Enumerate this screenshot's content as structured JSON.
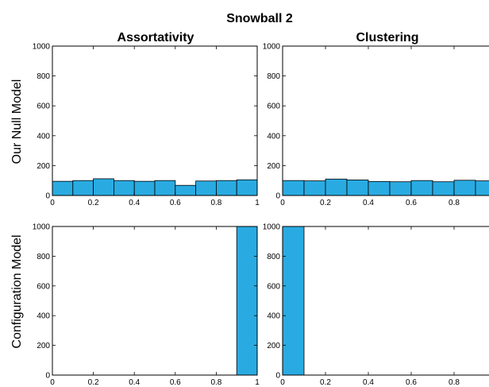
{
  "figure": {
    "title": "Snowball 2",
    "row_labels": [
      "Our Null Model",
      "Configuration Model"
    ],
    "bar_color": "#29abe2"
  },
  "chart_data": [
    {
      "type": "bar",
      "title": "Assortativity",
      "row": "Our Null Model",
      "bin_edges": [
        0,
        0.1,
        0.2,
        0.3,
        0.4,
        0.5,
        0.6,
        0.7,
        0.8,
        0.9,
        1.0
      ],
      "values": [
        95,
        100,
        112,
        100,
        95,
        100,
        68,
        97,
        100,
        105
      ],
      "xlim": [
        0,
        1
      ],
      "ylim": [
        0,
        1000
      ],
      "xticks": [
        "0",
        "0.2",
        "0.4",
        "0.6",
        "0.8",
        "1"
      ],
      "yticks": [
        "0",
        "200",
        "400",
        "600",
        "800",
        "1000"
      ]
    },
    {
      "type": "bar",
      "title": "Clustering",
      "row": "Our Null Model",
      "bin_edges": [
        0,
        0.1,
        0.2,
        0.3,
        0.4,
        0.5,
        0.6,
        0.7,
        0.8,
        0.9,
        1.0
      ],
      "values": [
        100,
        98,
        110,
        104,
        94,
        92,
        100,
        92,
        102,
        98
      ],
      "xlim": [
        0,
        1
      ],
      "ylim": [
        0,
        1000
      ],
      "xticks": [
        "0",
        "0.2",
        "0.4",
        "0.6",
        "0.8"
      ],
      "yticks": [
        "0",
        "200",
        "400",
        "600",
        "800",
        "1000"
      ]
    },
    {
      "type": "bar",
      "title": "",
      "row": "Configuration Model",
      "bin_edges": [
        0,
        0.1,
        0.2,
        0.3,
        0.4,
        0.5,
        0.6,
        0.7,
        0.8,
        0.9,
        1.0
      ],
      "values": [
        0,
        0,
        0,
        0,
        0,
        0,
        0,
        0,
        0,
        1000
      ],
      "xlim": [
        0,
        1
      ],
      "ylim": [
        0,
        1000
      ],
      "xticks": [
        "0",
        "0.2",
        "0.4",
        "0.6",
        "0.8",
        "1"
      ],
      "yticks": [
        "0",
        "200",
        "400",
        "600",
        "800",
        "1000"
      ]
    },
    {
      "type": "bar",
      "title": "",
      "row": "Configuration Model",
      "bin_edges": [
        0,
        0.1,
        0.2,
        0.3,
        0.4,
        0.5,
        0.6,
        0.7,
        0.8,
        0.9,
        1.0
      ],
      "values": [
        1000,
        0,
        0,
        0,
        0,
        0,
        0,
        0,
        0,
        0
      ],
      "xlim": [
        0,
        1
      ],
      "ylim": [
        0,
        1000
      ],
      "xticks": [
        "0",
        "0.2",
        "0.4",
        "0.6",
        "0.8"
      ],
      "yticks": [
        "0",
        "200",
        "400",
        "600",
        "800",
        "1000"
      ]
    }
  ]
}
